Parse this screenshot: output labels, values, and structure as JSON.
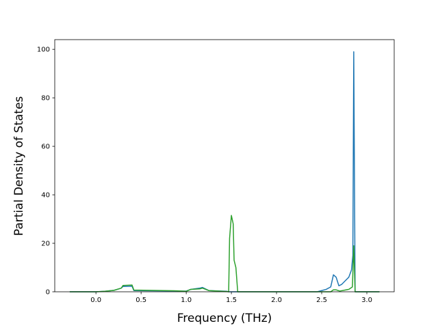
{
  "chart_data": {
    "type": "line",
    "xlabel": "Frequency (THz)",
    "ylabel": "Partial Density of States",
    "xlim": [
      -0.456,
      3.303
    ],
    "ylim": [
      0,
      104
    ],
    "xticks": [
      {
        "value": 0,
        "label": "0.0"
      },
      0.5,
      {
        "value": 1,
        "label": "1.0"
      },
      1.5,
      {
        "value": 2,
        "label": "2.0"
      },
      2.5,
      {
        "value": 3,
        "label": "3.0"
      }
    ],
    "yticks": [
      0,
      20,
      40,
      60,
      80,
      100
    ],
    "grid": false,
    "series": [
      {
        "color": "#1f77b4",
        "x": [
          -0.29,
          0.0,
          0.1,
          0.2,
          0.28,
          0.3,
          0.4,
          0.42,
          0.9,
          1.0,
          1.05,
          1.15,
          1.18,
          1.25,
          1.45,
          1.47,
          2.45,
          2.55,
          2.6,
          2.63,
          2.66,
          2.69,
          2.72,
          2.76,
          2.8,
          2.83,
          2.845,
          2.855,
          2.87,
          3.14
        ],
        "values": [
          0,
          0,
          0.2,
          0.6,
          1.5,
          2.2,
          2.3,
          0.5,
          0.3,
          0.3,
          1,
          1.5,
          1.8,
          0.5,
          0.2,
          0,
          0,
          1,
          2,
          7,
          6,
          2.5,
          3,
          4.5,
          6,
          9,
          15,
          99,
          0,
          0
        ]
      },
      {
        "color": "#2ca02c",
        "x": [
          -0.29,
          0.0,
          0.1,
          0.2,
          0.28,
          0.3,
          0.4,
          0.42,
          0.9,
          1.0,
          1.05,
          1.15,
          1.18,
          1.25,
          1.45,
          1.47,
          1.48,
          1.5,
          1.52,
          1.53,
          1.55,
          1.57,
          2.6,
          2.63,
          2.66,
          2.7,
          2.8,
          2.84,
          2.855,
          2.87,
          3.14
        ],
        "values": [
          0,
          0,
          0.2,
          0.6,
          1.5,
          2.6,
          2.8,
          0.7,
          0.4,
          0.2,
          1.0,
          1.2,
          1.5,
          0.5,
          0.1,
          0,
          22,
          31.5,
          28,
          13,
          10,
          0,
          0,
          0.8,
          0.8,
          0.3,
          1,
          2,
          19,
          0,
          0
        ]
      }
    ]
  }
}
